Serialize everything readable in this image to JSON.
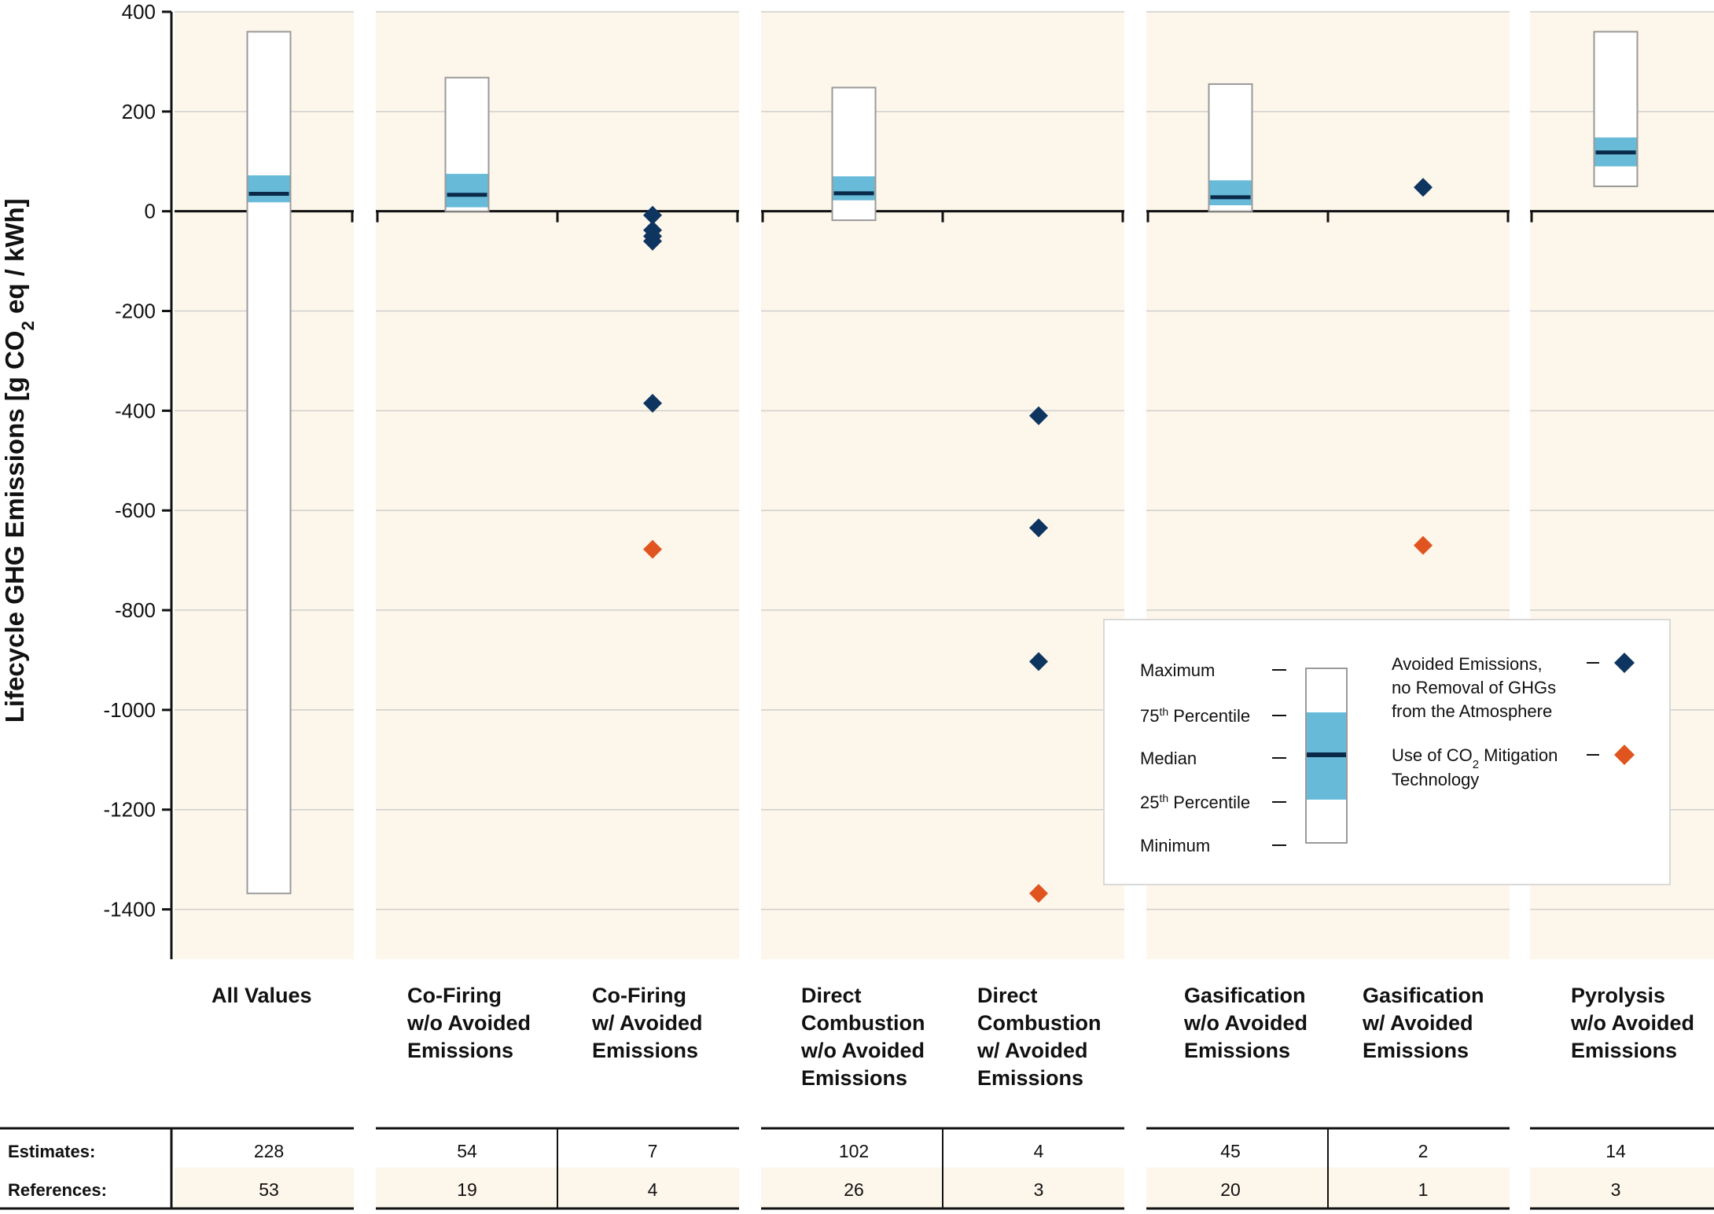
{
  "chart_data": {
    "type": "box",
    "y_axis": {
      "label_main": "Lifecycle GHG Emissions [g CO",
      "label_sub": "2",
      "label_rest": " eq / kWh]",
      "ticks": [
        "400",
        "200",
        "0",
        "-200",
        "-400",
        "-600",
        "-800",
        "-1000",
        "-1200",
        "-1400"
      ],
      "tick_values": [
        400,
        200,
        0,
        -200,
        -400,
        -600,
        -800,
        -1000,
        -1200,
        -1400
      ],
      "ylim": [
        -1500,
        400
      ]
    },
    "categories": [
      {
        "lines": [
          "All Values"
        ],
        "estimates": "228",
        "references": "53",
        "box": {
          "min": -1368,
          "q1": 18,
          "median": 35,
          "q3": 72,
          "max": 360
        }
      },
      {
        "lines": [
          "Co-Firing",
          "w/o Avoided",
          "Emissions"
        ],
        "estimates": "54",
        "references": "19",
        "box": {
          "min": 0,
          "q1": 8,
          "median": 33,
          "q3": 75,
          "max": 268
        }
      },
      {
        "lines": [
          "Co-Firing",
          "w/ Avoided",
          "Emissions"
        ],
        "estimates": "7",
        "references": "4",
        "avoided": [
          -8,
          -38,
          -50,
          -60,
          -385
        ],
        "mitigation": [
          -678
        ]
      },
      {
        "lines": [
          "Direct",
          "Combustion",
          "w/o Avoided",
          "Emissions"
        ],
        "estimates": "102",
        "references": "26",
        "box": {
          "min": -18,
          "q1": 22,
          "median": 36,
          "q3": 70,
          "max": 248
        }
      },
      {
        "lines": [
          "Direct",
          "Combustion",
          "w/ Avoided",
          "Emissions"
        ],
        "estimates": "4",
        "references": "3",
        "avoided": [
          -410,
          -635,
          -903
        ],
        "mitigation": [
          -1368
        ]
      },
      {
        "lines": [
          "Gasification",
          "w/o Avoided",
          "Emissions"
        ],
        "estimates": "45",
        "references": "20",
        "box": {
          "min": 0,
          "q1": 12,
          "median": 28,
          "q3": 62,
          "max": 255
        }
      },
      {
        "lines": [
          "Gasification",
          "w/ Avoided",
          "Emissions"
        ],
        "estimates": "2",
        "references": "1",
        "avoided": [
          48
        ],
        "mitigation": [
          -670
        ]
      },
      {
        "lines": [
          "Pyrolysis",
          "w/o Avoided",
          "Emissions"
        ],
        "estimates": "14",
        "references": "3",
        "box": {
          "min": 50,
          "q1": 90,
          "median": 118,
          "q3": 148,
          "max": 360
        }
      }
    ],
    "groups": [
      [
        0
      ],
      [
        1,
        2
      ],
      [
        3,
        4
      ],
      [
        5,
        6
      ],
      [
        7
      ]
    ],
    "table": {
      "estimates_label": "Estimates:",
      "references_label": "References:"
    },
    "legend": {
      "box_items": [
        {
          "main": "Maximum",
          "sup": ""
        },
        {
          "main": "75",
          "sup": "th",
          "rest": "  Percentile"
        },
        {
          "main": "Median",
          "sup": ""
        },
        {
          "main": "25",
          "sup": "th",
          "rest": " Percentile"
        },
        {
          "main": "Minimum",
          "sup": ""
        }
      ],
      "avoided_lines": [
        "Avoided Emissions,",
        "no Removal of GHGs",
        "from the Atmosphere"
      ],
      "mitigation_main": "Use of CO",
      "mitigation_sub": "2",
      "mitigation_rest": " Mitigation",
      "mitigation_line2": "Technology"
    },
    "colors": {
      "panel_bg": "#fdf6ea",
      "iqr": "#67bad8",
      "median": "#0b2a4a",
      "avoided": "#0e3560",
      "mitigation": "#e0541f",
      "grid": "#cfcfcf",
      "axis": "#111111",
      "box_border": "#9a9a9a"
    }
  }
}
